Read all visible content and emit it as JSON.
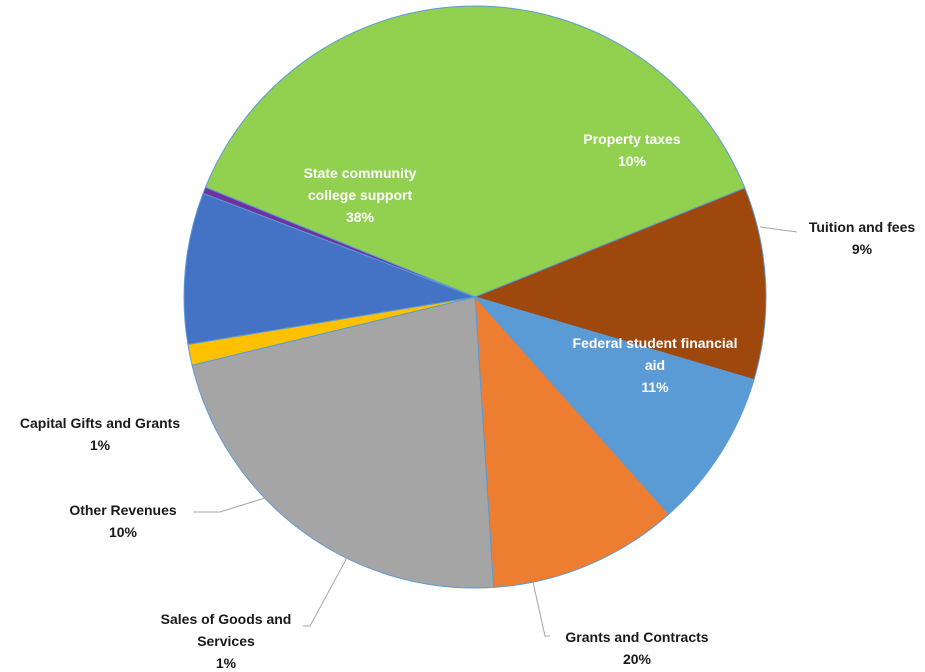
{
  "chart_data": {
    "type": "pie",
    "title": "",
    "slices": [
      {
        "name": "State community college support",
        "label_lines": [
          "State community",
          "college support"
        ],
        "value": 38,
        "pct_label": "38%",
        "color": "#92d050"
      },
      {
        "name": "Property taxes",
        "label_lines": [
          "Property taxes"
        ],
        "value": 10,
        "pct_label": "10%",
        "color": "#9e480e"
      },
      {
        "name": "Tuition and fees",
        "label_lines": [
          "Tuition and fees"
        ],
        "value": 9,
        "pct_label": "9%",
        "color": "#5b9bd5"
      },
      {
        "name": "Federal student financial aid",
        "label_lines": [
          "Federal student financial",
          "aid"
        ],
        "value": 11,
        "pct_label": "11%",
        "color": "#ed7d31"
      },
      {
        "name": "Grants and Contracts",
        "label_lines": [
          "Grants and Contracts"
        ],
        "value": 20,
        "pct_label": "20%",
        "color": "#a5a5a5"
      },
      {
        "name": "Sales of Goods and Services",
        "label_lines": [
          "Sales of Goods and",
          "Services"
        ],
        "value": 1,
        "pct_label": "1%",
        "color": "#ffc000"
      },
      {
        "name": "Other Revenues",
        "label_lines": [
          "Other  Revenues"
        ],
        "value": 10,
        "pct_label": "10%",
        "color": "#4472c4"
      },
      {
        "name": "Capital Gifts and Grants",
        "label_lines": [
          "Capital Gifts and Grants"
        ],
        "value": 1,
        "pct_label": "1%",
        "color": "#7030a0"
      }
    ]
  }
}
